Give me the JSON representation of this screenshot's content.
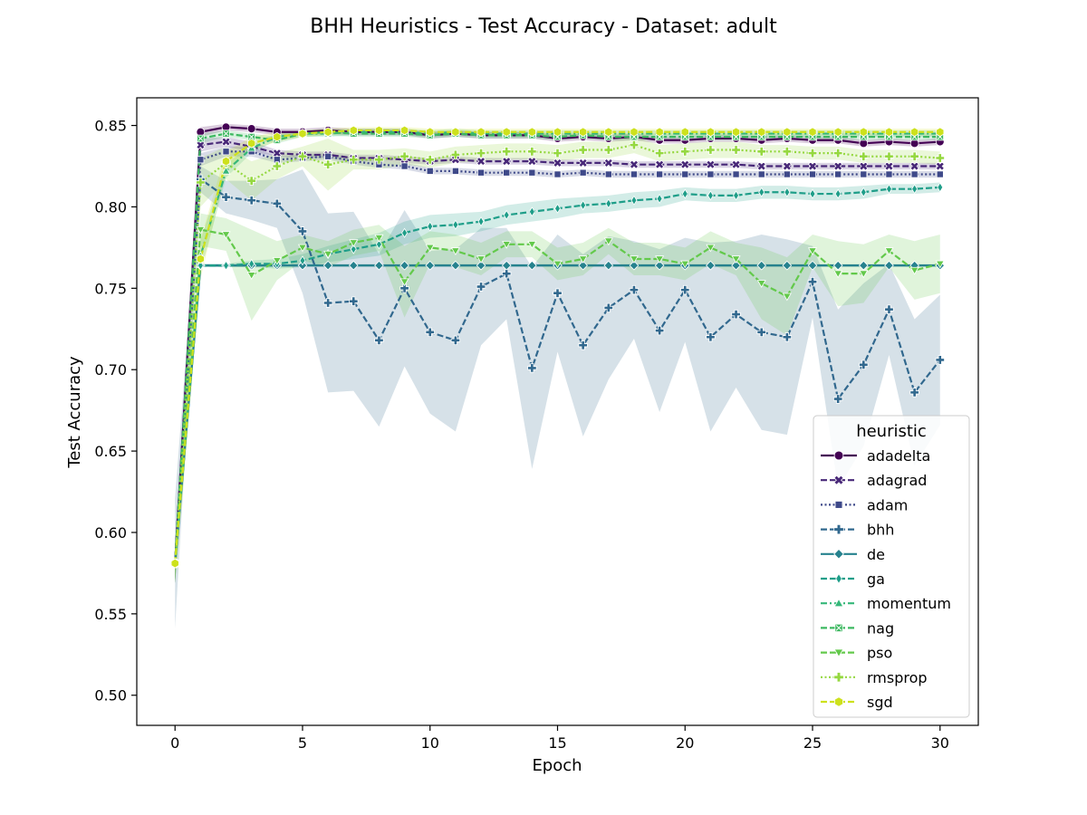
{
  "chart_data": {
    "type": "line",
    "title": "BHH Heuristics - Test Accuracy - Dataset: adult",
    "xlabel": "Epoch",
    "ylabel": "Test Accuracy",
    "xlim": [
      -1.5,
      31.5
    ],
    "ylim": [
      0.4815,
      0.867
    ],
    "xticks": [
      0,
      5,
      10,
      15,
      20,
      25,
      30
    ],
    "yticks": [
      0.5,
      0.55,
      0.6,
      0.65,
      0.7,
      0.75,
      0.8,
      0.85
    ],
    "ytick_labels": [
      "0.50",
      "0.55",
      "0.60",
      "0.65",
      "0.70",
      "0.75",
      "0.80",
      "0.85"
    ],
    "grid": false,
    "legend": {
      "title": "heuristic",
      "position": "lower-right"
    },
    "x": [
      0,
      1,
      2,
      3,
      4,
      5,
      6,
      7,
      8,
      9,
      10,
      11,
      12,
      13,
      14,
      15,
      16,
      17,
      18,
      19,
      20,
      21,
      22,
      23,
      24,
      25,
      26,
      27,
      28,
      29,
      30
    ],
    "series": [
      {
        "name": "adadelta",
        "color": "#440154",
        "marker": "circle",
        "dash": "solid",
        "values": [
          0.581,
          0.846,
          0.849,
          0.848,
          0.846,
          0.846,
          0.847,
          0.846,
          0.846,
          0.846,
          0.844,
          0.845,
          0.844,
          0.844,
          0.844,
          0.842,
          0.843,
          0.842,
          0.843,
          0.841,
          0.841,
          0.842,
          0.842,
          0.841,
          0.842,
          0.841,
          0.841,
          0.839,
          0.84,
          0.839,
          0.84
        ],
        "band": [
          0.012,
          0.003,
          0.002,
          0.002,
          0.002,
          0.002,
          0.002,
          0.002,
          0.002,
          0.002,
          0.002,
          0.002,
          0.002,
          0.002,
          0.002,
          0.002,
          0.002,
          0.002,
          0.002,
          0.002,
          0.002,
          0.002,
          0.002,
          0.002,
          0.002,
          0.002,
          0.002,
          0.002,
          0.002,
          0.002,
          0.002
        ]
      },
      {
        "name": "adagrad",
        "color": "#482878",
        "marker": "x",
        "dash": "dashed",
        "values": [
          0.581,
          0.838,
          0.84,
          0.837,
          0.833,
          0.832,
          0.832,
          0.83,
          0.83,
          0.829,
          0.828,
          0.829,
          0.828,
          0.828,
          0.828,
          0.827,
          0.827,
          0.827,
          0.826,
          0.826,
          0.826,
          0.826,
          0.826,
          0.825,
          0.825,
          0.825,
          0.825,
          0.825,
          0.825,
          0.825,
          0.825
        ],
        "band": [
          0.012,
          0.004,
          0.003,
          0.003,
          0.002,
          0.002,
          0.002,
          0.002,
          0.002,
          0.002,
          0.002,
          0.002,
          0.002,
          0.002,
          0.002,
          0.002,
          0.002,
          0.002,
          0.002,
          0.002,
          0.002,
          0.002,
          0.002,
          0.002,
          0.002,
          0.002,
          0.002,
          0.002,
          0.002,
          0.002,
          0.002
        ]
      },
      {
        "name": "adam",
        "color": "#3e4989",
        "marker": "square",
        "dash": "dotted",
        "values": [
          0.581,
          0.829,
          0.834,
          0.834,
          0.829,
          0.83,
          0.831,
          0.828,
          0.826,
          0.825,
          0.822,
          0.822,
          0.821,
          0.821,
          0.821,
          0.82,
          0.821,
          0.82,
          0.82,
          0.82,
          0.82,
          0.82,
          0.82,
          0.82,
          0.82,
          0.82,
          0.82,
          0.82,
          0.82,
          0.82,
          0.82
        ],
        "band": [
          0.012,
          0.004,
          0.003,
          0.003,
          0.002,
          0.002,
          0.002,
          0.002,
          0.002,
          0.002,
          0.002,
          0.002,
          0.002,
          0.002,
          0.002,
          0.002,
          0.002,
          0.002,
          0.002,
          0.002,
          0.002,
          0.002,
          0.002,
          0.002,
          0.002,
          0.002,
          0.002,
          0.002,
          0.002,
          0.002,
          0.002
        ]
      },
      {
        "name": "bhh",
        "color": "#31688e",
        "marker": "plus",
        "dash": "dashed",
        "values": [
          0.581,
          0.817,
          0.806,
          0.804,
          0.802,
          0.785,
          0.741,
          0.742,
          0.718,
          0.75,
          0.723,
          0.718,
          0.751,
          0.759,
          0.701,
          0.747,
          0.715,
          0.738,
          0.749,
          0.724,
          0.749,
          0.72,
          0.734,
          0.723,
          0.72,
          0.754,
          0.682,
          0.703,
          0.737,
          0.686,
          0.706
        ],
        "band": [
          0.04,
          0.008,
          0.01,
          0.012,
          0.015,
          0.038,
          0.055,
          0.055,
          0.053,
          0.048,
          0.05,
          0.056,
          0.036,
          0.028,
          0.062,
          0.036,
          0.056,
          0.044,
          0.03,
          0.05,
          0.032,
          0.058,
          0.045,
          0.06,
          0.06,
          0.022,
          0.055,
          0.05,
          0.028,
          0.045,
          0.04
        ]
      },
      {
        "name": "de",
        "color": "#26828e",
        "marker": "diamond",
        "dash": "solid",
        "values": [
          0.581,
          0.764,
          0.764,
          0.764,
          0.764,
          0.764,
          0.764,
          0.764,
          0.764,
          0.764,
          0.764,
          0.764,
          0.764,
          0.764,
          0.764,
          0.764,
          0.764,
          0.764,
          0.764,
          0.764,
          0.764,
          0.764,
          0.764,
          0.764,
          0.764,
          0.764,
          0.764,
          0.764,
          0.764,
          0.764,
          0.764
        ],
        "band": [
          0.012,
          0.001,
          0.001,
          0.001,
          0.001,
          0.001,
          0.001,
          0.001,
          0.001,
          0.001,
          0.001,
          0.001,
          0.001,
          0.001,
          0.001,
          0.001,
          0.001,
          0.001,
          0.001,
          0.001,
          0.001,
          0.001,
          0.001,
          0.001,
          0.001,
          0.001,
          0.001,
          0.001,
          0.001,
          0.001,
          0.001
        ]
      },
      {
        "name": "ga",
        "color": "#1f9e89",
        "marker": "thin-diamond",
        "dash": "dashed",
        "values": [
          0.581,
          0.764,
          0.764,
          0.765,
          0.765,
          0.767,
          0.771,
          0.774,
          0.777,
          0.784,
          0.788,
          0.789,
          0.791,
          0.795,
          0.797,
          0.799,
          0.801,
          0.802,
          0.804,
          0.805,
          0.808,
          0.807,
          0.807,
          0.809,
          0.809,
          0.808,
          0.808,
          0.809,
          0.811,
          0.811,
          0.812
        ],
        "band": [
          0.012,
          0.001,
          0.001,
          0.002,
          0.003,
          0.004,
          0.005,
          0.006,
          0.007,
          0.007,
          0.007,
          0.007,
          0.006,
          0.006,
          0.006,
          0.006,
          0.005,
          0.005,
          0.005,
          0.005,
          0.004,
          0.004,
          0.004,
          0.004,
          0.004,
          0.004,
          0.004,
          0.004,
          0.003,
          0.003,
          0.003
        ]
      },
      {
        "name": "momentum",
        "color": "#35b779",
        "marker": "triangle-up",
        "dash": "dashdot",
        "values": [
          0.581,
          0.77,
          0.822,
          0.836,
          0.843,
          0.845,
          0.845,
          0.846,
          0.846,
          0.846,
          0.845,
          0.846,
          0.845,
          0.845,
          0.845,
          0.845,
          0.845,
          0.845,
          0.845,
          0.845,
          0.845,
          0.845,
          0.845,
          0.845,
          0.845,
          0.845,
          0.845,
          0.845,
          0.845,
          0.845,
          0.845
        ],
        "band": [
          0.012,
          0.01,
          0.004,
          0.003,
          0.002,
          0.002,
          0.002,
          0.002,
          0.002,
          0.002,
          0.002,
          0.002,
          0.002,
          0.002,
          0.002,
          0.002,
          0.002,
          0.002,
          0.002,
          0.002,
          0.002,
          0.002,
          0.002,
          0.002,
          0.002,
          0.002,
          0.002,
          0.002,
          0.002,
          0.002,
          0.002
        ]
      },
      {
        "name": "nag",
        "color": "#3db860",
        "marker": "square-x",
        "dash": "dashed",
        "values": [
          0.581,
          0.842,
          0.845,
          0.843,
          0.841,
          0.845,
          0.846,
          0.845,
          0.845,
          0.845,
          0.844,
          0.845,
          0.844,
          0.844,
          0.844,
          0.843,
          0.844,
          0.843,
          0.843,
          0.843,
          0.843,
          0.843,
          0.843,
          0.843,
          0.843,
          0.843,
          0.843,
          0.843,
          0.843,
          0.843,
          0.843
        ],
        "band": [
          0.012,
          0.003,
          0.002,
          0.002,
          0.002,
          0.002,
          0.002,
          0.002,
          0.002,
          0.002,
          0.002,
          0.002,
          0.002,
          0.002,
          0.002,
          0.002,
          0.002,
          0.002,
          0.002,
          0.002,
          0.002,
          0.002,
          0.002,
          0.002,
          0.002,
          0.002,
          0.002,
          0.002,
          0.002,
          0.002,
          0.002
        ]
      },
      {
        "name": "pso",
        "color": "#63c94b",
        "marker": "triangle-down",
        "dash": "dashed",
        "values": [
          0.581,
          0.786,
          0.783,
          0.758,
          0.767,
          0.775,
          0.771,
          0.778,
          0.781,
          0.754,
          0.775,
          0.773,
          0.768,
          0.777,
          0.777,
          0.765,
          0.768,
          0.779,
          0.768,
          0.768,
          0.765,
          0.775,
          0.768,
          0.753,
          0.745,
          0.773,
          0.759,
          0.759,
          0.773,
          0.761,
          0.765
        ],
        "band": [
          0.012,
          0.01,
          0.01,
          0.028,
          0.012,
          0.008,
          0.008,
          0.008,
          0.008,
          0.022,
          0.01,
          0.01,
          0.01,
          0.008,
          0.008,
          0.01,
          0.01,
          0.008,
          0.01,
          0.01,
          0.01,
          0.01,
          0.01,
          0.022,
          0.024,
          0.01,
          0.02,
          0.018,
          0.01,
          0.018,
          0.018
        ]
      },
      {
        "name": "rmsprop",
        "color": "#95d840",
        "marker": "plus-filled",
        "dash": "dotted",
        "values": [
          0.581,
          0.815,
          0.827,
          0.816,
          0.825,
          0.831,
          0.826,
          0.829,
          0.829,
          0.831,
          0.829,
          0.832,
          0.833,
          0.834,
          0.834,
          0.833,
          0.835,
          0.835,
          0.838,
          0.833,
          0.834,
          0.835,
          0.835,
          0.834,
          0.834,
          0.833,
          0.833,
          0.831,
          0.831,
          0.831,
          0.83
        ],
        "band": [
          0.012,
          0.015,
          0.01,
          0.012,
          0.008,
          0.006,
          0.016,
          0.006,
          0.006,
          0.005,
          0.005,
          0.005,
          0.005,
          0.005,
          0.005,
          0.005,
          0.005,
          0.005,
          0.005,
          0.005,
          0.005,
          0.005,
          0.005,
          0.004,
          0.004,
          0.004,
          0.004,
          0.004,
          0.004,
          0.004,
          0.004
        ]
      },
      {
        "name": "sgd",
        "color": "#cde11d",
        "marker": "hexagon",
        "dash": "dashed",
        "values": [
          0.581,
          0.768,
          0.828,
          0.839,
          0.843,
          0.845,
          0.846,
          0.847,
          0.847,
          0.847,
          0.846,
          0.846,
          0.846,
          0.846,
          0.846,
          0.846,
          0.846,
          0.846,
          0.846,
          0.846,
          0.846,
          0.846,
          0.846,
          0.846,
          0.846,
          0.846,
          0.846,
          0.846,
          0.846,
          0.846,
          0.846
        ],
        "band": [
          0.012,
          0.012,
          0.006,
          0.004,
          0.003,
          0.002,
          0.002,
          0.002,
          0.002,
          0.002,
          0.002,
          0.002,
          0.002,
          0.002,
          0.002,
          0.002,
          0.002,
          0.002,
          0.002,
          0.002,
          0.002,
          0.002,
          0.002,
          0.002,
          0.002,
          0.002,
          0.002,
          0.002,
          0.002,
          0.002,
          0.002
        ]
      }
    ]
  }
}
